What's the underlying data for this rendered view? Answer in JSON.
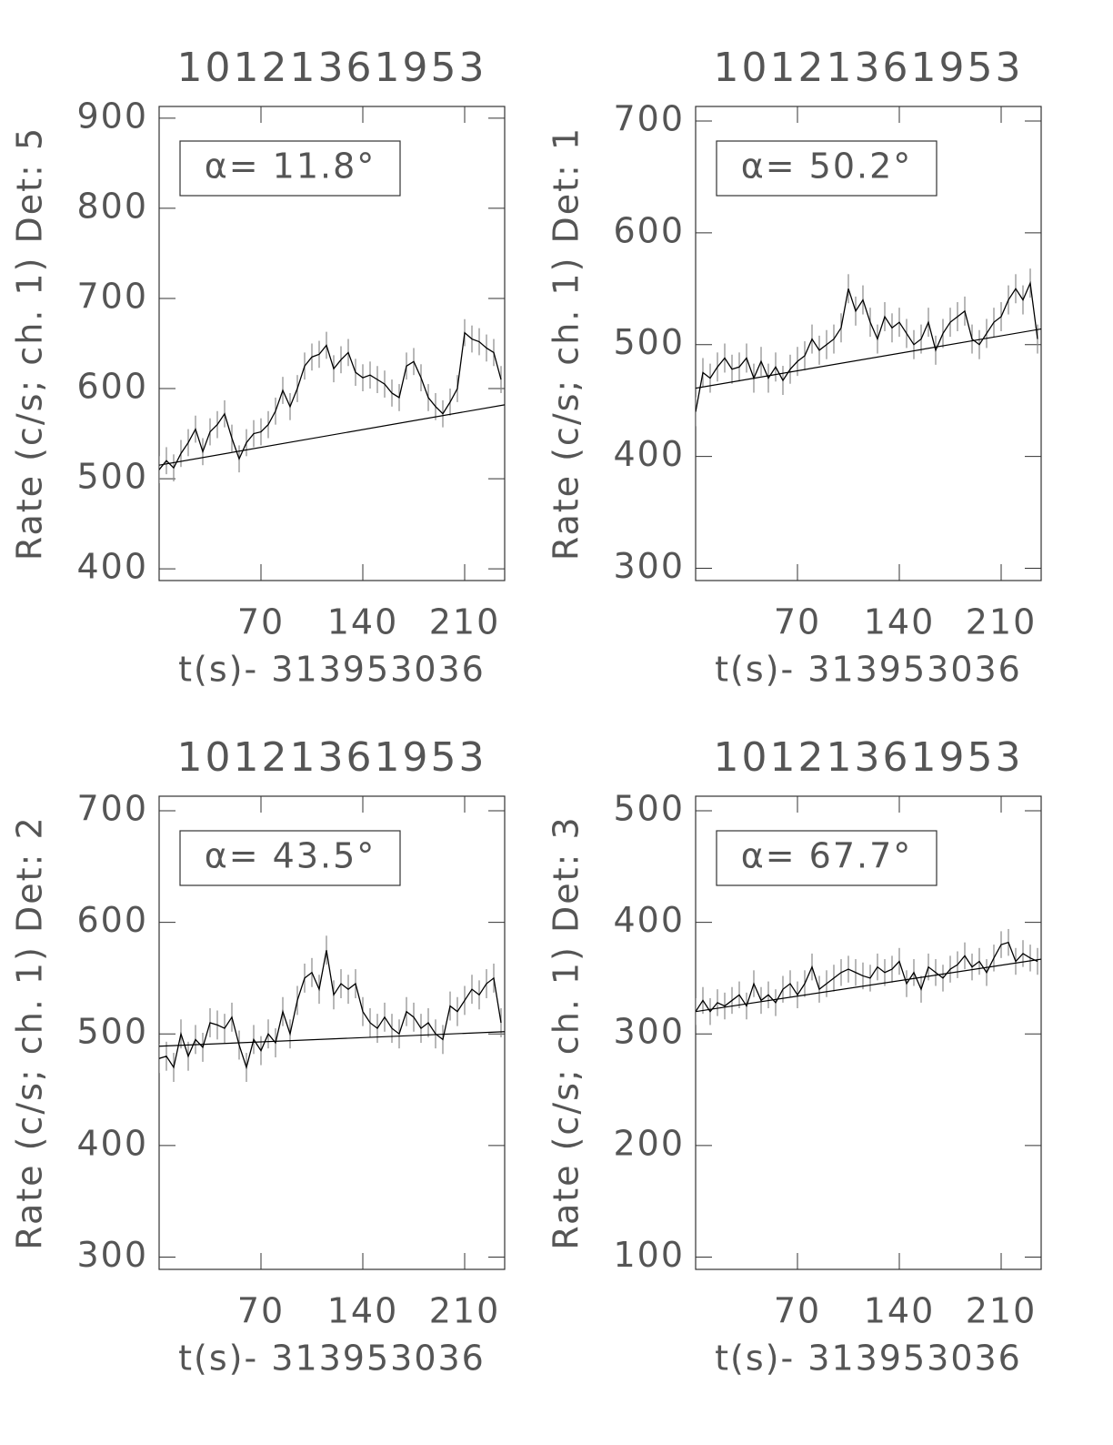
{
  "chart_data": [
    {
      "type": "line",
      "title": "10121361953",
      "xlabel": "t(s)- 313953036",
      "ylabel": "Rate (c/s; ch. 1) Det: 5",
      "annotation": "α= 11.8°",
      "x": [
        0,
        5,
        10,
        15,
        20,
        25,
        30,
        35,
        40,
        45,
        50,
        55,
        60,
        65,
        70,
        75,
        80,
        85,
        90,
        95,
        100,
        105,
        110,
        115,
        120,
        125,
        130,
        135,
        140,
        145,
        150,
        155,
        160,
        165,
        170,
        175,
        180,
        185,
        190,
        195,
        200,
        205,
        210,
        215,
        220,
        225,
        230,
        235
      ],
      "series": [
        {
          "name": "rate",
          "color": "#000000",
          "values": [
            510,
            520,
            512,
            528,
            540,
            555,
            530,
            552,
            560,
            572,
            545,
            522,
            540,
            550,
            552,
            560,
            575,
            598,
            580,
            600,
            625,
            635,
            638,
            648,
            622,
            632,
            640,
            618,
            612,
            615,
            610,
            605,
            595,
            590,
            625,
            630,
            612,
            590,
            580,
            572,
            585,
            600,
            662,
            655,
            652,
            645,
            640,
            610
          ],
          "error": 15
        }
      ],
      "fit": {
        "x": [
          0,
          237.5
        ],
        "values": [
          515,
          582
        ]
      },
      "xlim": [
        0,
        237.5
      ],
      "xticks": [
        70,
        140,
        210
      ],
      "ylim": [
        387,
        913
      ],
      "yticks": [
        400,
        500,
        600,
        700,
        800,
        900
      ]
    },
    {
      "type": "line",
      "title": "10121361953",
      "xlabel": "t(s)- 313953036",
      "ylabel": "Rate (c/s; ch. 1) Det: 1",
      "annotation": "α= 50.2°",
      "x": [
        0,
        5,
        10,
        15,
        20,
        25,
        30,
        35,
        40,
        45,
        50,
        55,
        60,
        65,
        70,
        75,
        80,
        85,
        90,
        95,
        100,
        105,
        110,
        115,
        120,
        125,
        130,
        135,
        140,
        145,
        150,
        155,
        160,
        165,
        170,
        175,
        180,
        185,
        190,
        195,
        200,
        205,
        210,
        215,
        220,
        225,
        230,
        235
      ],
      "series": [
        {
          "name": "rate",
          "color": "#000000",
          "values": [
            440,
            475,
            470,
            480,
            488,
            478,
            480,
            488,
            470,
            485,
            470,
            480,
            468,
            478,
            485,
            490,
            505,
            495,
            500,
            505,
            515,
            550,
            530,
            540,
            520,
            505,
            525,
            515,
            520,
            510,
            500,
            505,
            520,
            495,
            510,
            520,
            525,
            530,
            505,
            500,
            510,
            520,
            525,
            540,
            550,
            540,
            555,
            505
          ],
          "error": 13
        }
      ],
      "fit": {
        "x": [
          0,
          237.5
        ],
        "values": [
          461,
          514
        ]
      },
      "xlim": [
        0,
        237.5
      ],
      "xticks": [
        70,
        140,
        210
      ],
      "ylim": [
        289,
        713
      ],
      "yticks": [
        300,
        400,
        500,
        600,
        700
      ]
    },
    {
      "type": "line",
      "title": "10121361953",
      "xlabel": "t(s)- 313953036",
      "ylabel": "Rate (c/s; ch. 1) Det: 2",
      "annotation": "α= 43.5°",
      "x": [
        0,
        5,
        10,
        15,
        20,
        25,
        30,
        35,
        40,
        45,
        50,
        55,
        60,
        65,
        70,
        75,
        80,
        85,
        90,
        95,
        100,
        105,
        110,
        115,
        120,
        125,
        130,
        135,
        140,
        145,
        150,
        155,
        160,
        165,
        170,
        175,
        180,
        185,
        190,
        195,
        200,
        205,
        210,
        215,
        220,
        225,
        230,
        235
      ],
      "series": [
        {
          "name": "rate",
          "color": "#000000",
          "values": [
            478,
            480,
            470,
            500,
            480,
            495,
            488,
            510,
            508,
            505,
            515,
            490,
            470,
            495,
            485,
            500,
            492,
            520,
            500,
            530,
            550,
            555,
            540,
            575,
            535,
            545,
            540,
            545,
            520,
            510,
            505,
            515,
            505,
            500,
            520,
            515,
            505,
            510,
            500,
            495,
            525,
            520,
            530,
            540,
            535,
            545,
            550,
            510
          ],
          "error": 13
        }
      ],
      "fit": {
        "x": [
          0,
          237.5
        ],
        "values": [
          489,
          502
        ]
      },
      "xlim": [
        0,
        237.5
      ],
      "xticks": [
        70,
        140,
        210
      ],
      "ylim": [
        289,
        713
      ],
      "yticks": [
        300,
        400,
        500,
        600,
        700
      ]
    },
    {
      "type": "line",
      "title": "10121361953",
      "xlabel": "t(s)- 313953036",
      "ylabel": "Rate (c/s; ch. 1) Det: 3",
      "annotation": "α= 67.7°",
      "x": [
        0,
        5,
        10,
        15,
        20,
        25,
        30,
        35,
        40,
        45,
        50,
        55,
        60,
        65,
        70,
        75,
        80,
        85,
        90,
        95,
        100,
        105,
        110,
        115,
        120,
        125,
        130,
        135,
        140,
        145,
        150,
        155,
        160,
        165,
        170,
        175,
        180,
        185,
        190,
        195,
        200,
        205,
        210,
        215,
        220,
        225,
        230,
        235
      ],
      "series": [
        {
          "name": "rate",
          "color": "#000000",
          "values": [
            320,
            330,
            320,
            328,
            325,
            330,
            335,
            325,
            345,
            330,
            335,
            328,
            340,
            345,
            335,
            345,
            360,
            340,
            345,
            350,
            355,
            358,
            355,
            352,
            350,
            360,
            355,
            358,
            365,
            345,
            355,
            340,
            360,
            355,
            350,
            358,
            362,
            370,
            360,
            365,
            355,
            368,
            380,
            382,
            365,
            372,
            368,
            365
          ],
          "error": 12
        }
      ],
      "fit": {
        "x": [
          0,
          237.5
        ],
        "values": [
          320,
          367
        ]
      },
      "xlim": [
        0,
        237.5
      ],
      "xticks": [
        70,
        140,
        210
      ],
      "ylim": [
        89,
        513
      ],
      "yticks": [
        100,
        200,
        300,
        400,
        500
      ]
    }
  ]
}
